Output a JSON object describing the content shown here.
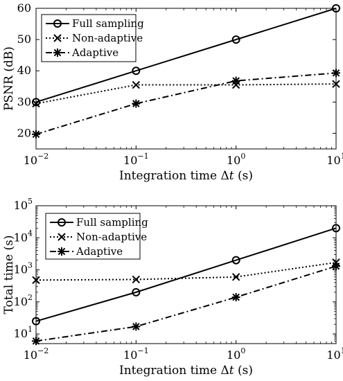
{
  "chart_data": [
    {
      "type": "line",
      "xscale": "log",
      "yscale": "linear",
      "xlabel_prefix": "Integration time ",
      "xlabel_delta": "Δ",
      "xlabel_var": "t",
      "xlabel_suffix": " (s)",
      "ylabel": "PSNR (dB)",
      "xlim": [
        0.01,
        10
      ],
      "ylim": [
        15,
        60
      ],
      "xticks": [
        0.01,
        0.1,
        1,
        10
      ],
      "xtick_exponents": [
        "−2",
        "−1",
        "0",
        "1"
      ],
      "xtick_base": "10",
      "yticks": [
        20,
        30,
        40,
        50,
        60
      ],
      "ytick_labels": [
        "20",
        "30",
        "40",
        "50",
        "60"
      ],
      "legend_position": "top-left",
      "x": [
        0.01,
        0.1,
        1,
        10
      ],
      "series": [
        {
          "name": "Full sampling",
          "marker": "circle",
          "dash": "solid",
          "values": [
            30,
            40,
            50,
            60
          ]
        },
        {
          "name": "Non-adaptive",
          "marker": "x",
          "dash": "dotted",
          "values": [
            29.5,
            35.5,
            35.5,
            35.8
          ]
        },
        {
          "name": "Adaptive",
          "marker": "asterisk",
          "dash": "dashdot",
          "values": [
            19.7,
            29.5,
            36.8,
            39.3
          ]
        }
      ]
    },
    {
      "type": "line",
      "xscale": "log",
      "yscale": "log",
      "xlabel_prefix": "Integration time ",
      "xlabel_delta": "Δ",
      "xlabel_var": "t",
      "xlabel_suffix": " (s)",
      "ylabel": "Total time (s)",
      "xlim": [
        0.01,
        10
      ],
      "ylim": [
        5,
        100000
      ],
      "xticks": [
        0.01,
        0.1,
        1,
        10
      ],
      "xtick_exponents": [
        "−2",
        "−1",
        "0",
        "1"
      ],
      "xtick_base": "10",
      "yticks": [
        10,
        100,
        1000,
        10000,
        100000
      ],
      "ytick_exponents": [
        "1",
        "2",
        "3",
        "4",
        "5"
      ],
      "ytick_base": "10",
      "legend_position": "top-left",
      "x": [
        0.01,
        0.1,
        1,
        10
      ],
      "series": [
        {
          "name": "Full sampling",
          "marker": "circle",
          "dash": "solid",
          "values": [
            25,
            200,
            2000,
            20000
          ]
        },
        {
          "name": "Non-adaptive",
          "marker": "x",
          "dash": "dotted",
          "values": [
            480,
            500,
            600,
            1700
          ]
        },
        {
          "name": "Adaptive",
          "marker": "asterisk",
          "dash": "dashdot",
          "values": [
            6,
            17,
            140,
            1300
          ]
        }
      ]
    }
  ]
}
